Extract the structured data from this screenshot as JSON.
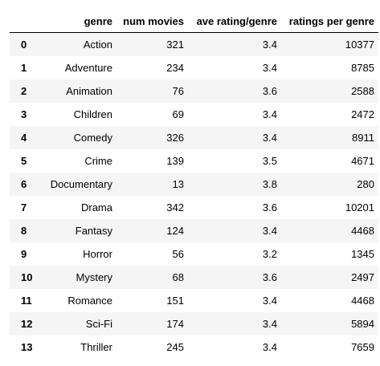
{
  "table": {
    "columns": [
      "",
      "genre",
      "num movies",
      "ave rating/genre",
      "ratings per genre"
    ],
    "rows": [
      {
        "index": "0",
        "genre": "Action",
        "num_movies": "321",
        "ave_rating": "3.4",
        "ratings": "10377"
      },
      {
        "index": "1",
        "genre": "Adventure",
        "num_movies": "234",
        "ave_rating": "3.4",
        "ratings": "8785"
      },
      {
        "index": "2",
        "genre": "Animation",
        "num_movies": "76",
        "ave_rating": "3.6",
        "ratings": "2588"
      },
      {
        "index": "3",
        "genre": "Children",
        "num_movies": "69",
        "ave_rating": "3.4",
        "ratings": "2472"
      },
      {
        "index": "4",
        "genre": "Comedy",
        "num_movies": "326",
        "ave_rating": "3.4",
        "ratings": "8911"
      },
      {
        "index": "5",
        "genre": "Crime",
        "num_movies": "139",
        "ave_rating": "3.5",
        "ratings": "4671"
      },
      {
        "index": "6",
        "genre": "Documentary",
        "num_movies": "13",
        "ave_rating": "3.8",
        "ratings": "280"
      },
      {
        "index": "7",
        "genre": "Drama",
        "num_movies": "342",
        "ave_rating": "3.6",
        "ratings": "10201"
      },
      {
        "index": "8",
        "genre": "Fantasy",
        "num_movies": "124",
        "ave_rating": "3.4",
        "ratings": "4468"
      },
      {
        "index": "9",
        "genre": "Horror",
        "num_movies": "56",
        "ave_rating": "3.2",
        "ratings": "1345"
      },
      {
        "index": "10",
        "genre": "Mystery",
        "num_movies": "68",
        "ave_rating": "3.6",
        "ratings": "2497"
      },
      {
        "index": "11",
        "genre": "Romance",
        "num_movies": "151",
        "ave_rating": "3.4",
        "ratings": "4468"
      },
      {
        "index": "12",
        "genre": "Sci-Fi",
        "num_movies": "174",
        "ave_rating": "3.4",
        "ratings": "5894"
      },
      {
        "index": "13",
        "genre": "Thriller",
        "num_movies": "245",
        "ave_rating": "3.4",
        "ratings": "7659"
      }
    ]
  },
  "colors": {
    "row_stripe": "#f5f5f5",
    "row_plain": "#ffffff",
    "header_rule": "#000000"
  }
}
